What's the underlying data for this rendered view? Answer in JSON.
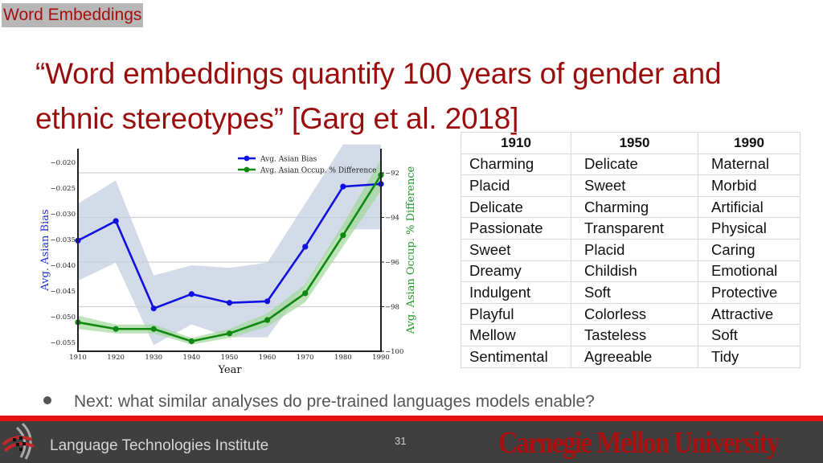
{
  "section_tag": "Word Embeddings",
  "title": {
    "line1": "“Word embeddings quantify 100 years of gender and",
    "line2": "ethnic stereotypes” [Garg et al. 2018]"
  },
  "chart_data": {
    "type": "line",
    "title": "",
    "xlabel": "Year",
    "ylabel": "Avg. Asian Bias",
    "y2label": "Avg. Asian Occup. % Difference",
    "x": [
      1910,
      1920,
      1930,
      1940,
      1950,
      1960,
      1970,
      1980,
      1990
    ],
    "x_ticks": [
      "1910",
      "1920",
      "1930",
      "1940",
      "1950",
      "1960",
      "1970",
      "1980",
      "1990"
    ],
    "ylim": [
      -0.0567,
      -0.0173
    ],
    "y_ticks": [
      "−0.020",
      "−0.025",
      "−0.030",
      "−0.035",
      "−0.040",
      "−0.045",
      "−0.050",
      "−0.055"
    ],
    "y2lim": [
      -100,
      -91.2
    ],
    "y2_ticks": [
      "−92",
      "−94",
      "−96",
      "−98",
      "−100"
    ],
    "grid": "horizontal (right axis)",
    "legend_position": "upper right",
    "series": [
      {
        "name": "Avg. Asian Bias",
        "axis": "left",
        "color": "#1010e0",
        "band_color": "#c5cfe0",
        "values": [
          -0.0352,
          -0.0314,
          -0.0484,
          -0.0456,
          -0.0473,
          -0.047,
          -0.0364,
          -0.0247,
          -0.0242
        ],
        "band_upper": [
          -0.028,
          -0.0235,
          -0.042,
          -0.04,
          -0.0405,
          -0.0395,
          -0.028,
          -0.0165,
          -0.0165
        ],
        "band_lower": [
          -0.043,
          -0.0395,
          -0.0555,
          -0.0515,
          -0.054,
          -0.054,
          -0.044,
          -0.033,
          -0.033
        ]
      },
      {
        "name": "Avg. Asian Occup. % Difference",
        "axis": "right",
        "color": "#118811",
        "band_color": "#9fd99a",
        "values": [
          -98.7,
          -99.0,
          -99.0,
          -99.55,
          -99.2,
          -98.6,
          -97.4,
          -94.8,
          -92.1
        ],
        "band_upper": [
          -98.4,
          -98.8,
          -98.8,
          -99.4,
          -99.0,
          -98.3,
          -97.0,
          -94.3,
          -91.4
        ],
        "band_lower": [
          -99.0,
          -99.2,
          -99.2,
          -99.7,
          -99.4,
          -98.9,
          -97.8,
          -95.3,
          -92.8
        ]
      }
    ]
  },
  "table": {
    "headers": [
      "1910",
      "1950",
      "1990"
    ],
    "rows": [
      [
        "Charming",
        "Delicate",
        "Maternal"
      ],
      [
        "Placid",
        "Sweet",
        "Morbid"
      ],
      [
        "Delicate",
        "Charming",
        "Artificial"
      ],
      [
        "Passionate",
        "Transparent",
        "Physical"
      ],
      [
        "Sweet",
        "Placid",
        "Caring"
      ],
      [
        "Dreamy",
        "Childish",
        "Emotional"
      ],
      [
        "Indulgent",
        "Soft",
        "Protective"
      ],
      [
        "Playful",
        "Colorless",
        "Attractive"
      ],
      [
        "Mellow",
        "Tasteless",
        "Soft"
      ],
      [
        "Sentimental",
        "Agreeable",
        "Tidy"
      ]
    ]
  },
  "bullet": "Next: what similar analyses do pre-trained languages models enable?",
  "footer": {
    "institute": "Language Technologies Institute",
    "page_number": "31",
    "university": "Carnegie Mellon University",
    "logo_icon": "lti-logo-icon"
  },
  "colors": {
    "title": "#9b0d0d",
    "footer_bg": "#3f3f3f",
    "footer_bar": "#e3110f",
    "cmu_red": "#a8100f"
  }
}
